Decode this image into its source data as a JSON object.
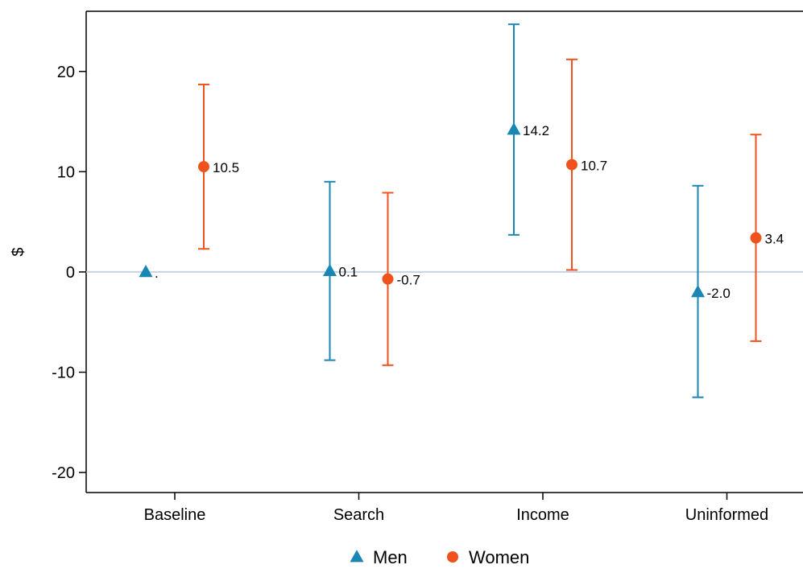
{
  "chart_data": {
    "type": "scatter",
    "subtype": "coefficient-plot-with-error-bars",
    "categories": [
      "Baseline",
      "Search",
      "Income",
      "Uninformed"
    ],
    "ylabel": "$",
    "ylim": [
      -22,
      26
    ],
    "yticks": [
      -20,
      -10,
      0,
      10,
      20
    ],
    "ytick_labels": [
      "-20",
      "-10",
      "0",
      "10",
      "20"
    ],
    "reference_line": 0,
    "grid": false,
    "legend_position": "bottom",
    "series": [
      {
        "name": "Men",
        "marker": "triangle",
        "color": "#1a86b4",
        "points": [
          {
            "category": "Baseline",
            "value": 0,
            "ci": null,
            "label": "."
          },
          {
            "category": "Search",
            "value": 0.1,
            "ci": [
              -8.8,
              9.0
            ],
            "label": "0.1"
          },
          {
            "category": "Income",
            "value": 14.2,
            "ci": [
              3.7,
              24.7
            ],
            "label": "14.2"
          },
          {
            "category": "Uninformed",
            "value": -2.0,
            "ci": [
              -12.5,
              8.6
            ],
            "label": "-2.0"
          }
        ]
      },
      {
        "name": "Women",
        "marker": "circle",
        "color": "#f0521e",
        "points": [
          {
            "category": "Baseline",
            "value": 10.5,
            "ci": [
              2.3,
              18.7
            ],
            "label": "10.5"
          },
          {
            "category": "Search",
            "value": -0.7,
            "ci": [
              -9.3,
              7.9
            ],
            "label": "-0.7"
          },
          {
            "category": "Income",
            "value": 10.7,
            "ci": [
              0.2,
              21.2
            ],
            "label": "10.7"
          },
          {
            "category": "Uninformed",
            "value": 3.4,
            "ci": [
              -6.9,
              13.7
            ],
            "label": "3.4"
          }
        ]
      }
    ]
  },
  "colors": {
    "reference_line": "#c6d4df",
    "axis": "#000000"
  }
}
